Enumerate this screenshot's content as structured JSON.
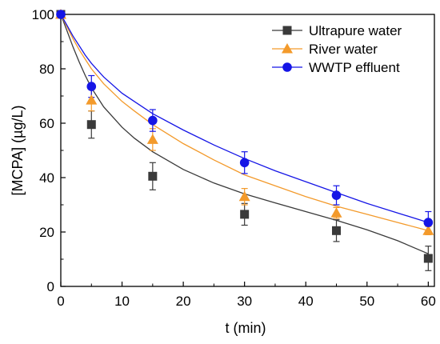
{
  "chart_data": {
    "type": "scatter",
    "title": "",
    "xlabel": "t (min)",
    "ylabel": "[MCPA] (µg/L)",
    "xlim": [
      0,
      61
    ],
    "ylim": [
      0,
      100
    ],
    "x_ticks": [
      0,
      10,
      20,
      30,
      40,
      50,
      60
    ],
    "y_ticks": [
      0,
      20,
      40,
      60,
      80,
      100
    ],
    "grid": false,
    "legend_position": "top-right",
    "series": [
      {
        "name": "Ultrapure water",
        "color": "#3a3a3a",
        "marker": "square",
        "x": [
          0,
          5,
          15,
          30,
          45,
          60
        ],
        "y": [
          100,
          59.5,
          40.5,
          26.5,
          20.5,
          10.3
        ],
        "err": [
          0,
          5,
          5,
          4,
          4,
          4.5
        ],
        "fit": [
          [
            0,
            100
          ],
          [
            1,
            94
          ],
          [
            2,
            88
          ],
          [
            3,
            82.5
          ],
          [
            4,
            77.5
          ],
          [
            5,
            73
          ],
          [
            7,
            66
          ],
          [
            10,
            58.5
          ],
          [
            12,
            54.5
          ],
          [
            15,
            49.5
          ],
          [
            20,
            43
          ],
          [
            25,
            38
          ],
          [
            30,
            34
          ],
          [
            35,
            30.7
          ],
          [
            40,
            27.5
          ],
          [
            45,
            24.3
          ],
          [
            50,
            20.8
          ],
          [
            55,
            16.8
          ],
          [
            60,
            12
          ]
        ]
      },
      {
        "name": "River water",
        "color": "#f39a2b",
        "marker": "triangle",
        "x": [
          0,
          5,
          15,
          30,
          45,
          60
        ],
        "y": [
          100,
          68.5,
          54.0,
          33.0,
          27.0,
          20.5
        ],
        "err": [
          0,
          4,
          4,
          3,
          2,
          1.5
        ],
        "fit": [
          [
            0,
            100
          ],
          [
            1,
            95.5
          ],
          [
            2,
            91
          ],
          [
            3,
            87
          ],
          [
            4,
            83.5
          ],
          [
            5,
            80
          ],
          [
            7,
            74.5
          ],
          [
            10,
            68
          ],
          [
            12,
            64.5
          ],
          [
            15,
            59.5
          ],
          [
            20,
            52.5
          ],
          [
            25,
            46.5
          ],
          [
            30,
            41
          ],
          [
            35,
            37
          ],
          [
            40,
            33
          ],
          [
            45,
            29.5
          ],
          [
            50,
            26.5
          ],
          [
            55,
            23.5
          ],
          [
            60,
            20.5
          ]
        ]
      },
      {
        "name": "WWTP effluent",
        "color": "#1515e6",
        "marker": "circle",
        "x": [
          0,
          5,
          15,
          30,
          45,
          60
        ],
        "y": [
          100,
          73.5,
          61.0,
          45.5,
          33.5,
          23.5
        ],
        "err": [
          0,
          4,
          4,
          4,
          3.5,
          4
        ],
        "fit": [
          [
            0,
            100
          ],
          [
            1,
            96
          ],
          [
            2,
            92
          ],
          [
            3,
            88.5
          ],
          [
            4,
            85
          ],
          [
            5,
            82
          ],
          [
            7,
            77
          ],
          [
            10,
            71
          ],
          [
            12,
            68
          ],
          [
            15,
            63.5
          ],
          [
            20,
            57.5
          ],
          [
            25,
            52
          ],
          [
            30,
            47
          ],
          [
            35,
            42.5
          ],
          [
            40,
            38.5
          ],
          [
            45,
            34.5
          ],
          [
            50,
            30.5
          ],
          [
            55,
            27
          ],
          [
            60,
            23.5
          ]
        ]
      }
    ]
  }
}
